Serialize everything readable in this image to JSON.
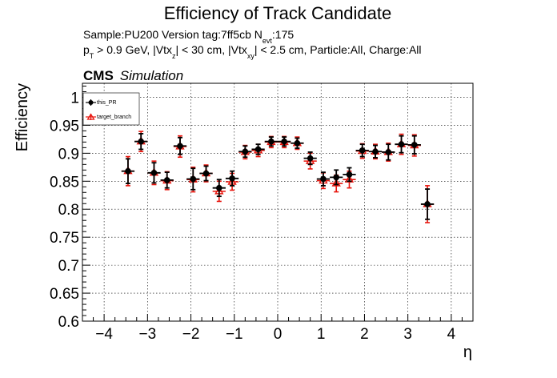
{
  "title": "Efficiency of Track Candidate",
  "info": {
    "sample_prefix": "Sample:PU200   Version tag:7ff5cb  N",
    "sample_sub": "evt",
    "sample_suffix": ":175",
    "cuts_p": "p",
    "cuts_p_sub": "T",
    "cuts_mid1": " > 0.9 GeV, |Vtx",
    "cuts_z_sub": "z",
    "cuts_mid2": "| < 30 cm, |Vtx",
    "cuts_xy_sub": "xy",
    "cuts_end": "| < 2.5 cm, Particle:All, Charge:All"
  },
  "cms_label": "CMS",
  "cms_sublabel": "Simulation",
  "legend": {
    "entries": [
      {
        "label": "this_PR",
        "color": "#000000",
        "marker": "filled-circle"
      },
      {
        "label": "target_branch",
        "color": "#e8140c",
        "marker": "open-triangle"
      }
    ]
  },
  "chart_data": {
    "type": "scatter",
    "title": "Efficiency of Track Candidate",
    "xlabel": "η",
    "ylabel": "Efficiency",
    "xlim": [
      -4.5,
      4.5
    ],
    "ylim": [
      0.6,
      1.025
    ],
    "xticks": [
      -4,
      -3,
      -2,
      -1,
      0,
      1,
      2,
      3,
      4
    ],
    "xtick_labels": [
      "−4",
      "−3",
      "−2",
      "−1",
      "0",
      "1",
      "2",
      "3",
      "4"
    ],
    "yticks": [
      0.6,
      0.65,
      0.7,
      0.75,
      0.8,
      0.85,
      0.9,
      0.95,
      1.0
    ],
    "ytick_labels": [
      "0.6",
      "0.65",
      "0.7",
      "0.75",
      "0.8",
      "0.85",
      "0.9",
      "0.95",
      "1"
    ],
    "grid": true,
    "legend_position": "top-left",
    "bin_half_width": 0.15,
    "series": [
      {
        "name": "this_PR",
        "color": "#000000",
        "x": [
          -3.45,
          -3.15,
          -2.85,
          -2.55,
          -2.25,
          -1.95,
          -1.65,
          -1.35,
          -1.05,
          -0.75,
          -0.45,
          -0.15,
          0.15,
          0.45,
          0.75,
          1.05,
          1.35,
          1.65,
          1.95,
          2.25,
          2.55,
          2.85,
          3.15,
          3.45
        ],
        "y": [
          0.868,
          0.921,
          0.865,
          0.852,
          0.913,
          0.854,
          0.864,
          0.838,
          0.855,
          0.903,
          0.907,
          0.921,
          0.921,
          0.918,
          0.891,
          0.854,
          0.857,
          0.862,
          0.905,
          0.903,
          0.902,
          0.916,
          0.915,
          0.809
        ],
        "yerr": [
          0.022,
          0.014,
          0.018,
          0.014,
          0.015,
          0.019,
          0.013,
          0.015,
          0.013,
          0.01,
          0.009,
          0.008,
          0.008,
          0.009,
          0.011,
          0.012,
          0.013,
          0.012,
          0.011,
          0.011,
          0.014,
          0.015,
          0.016,
          0.027
        ]
      },
      {
        "name": "target_branch",
        "color": "#e8140c",
        "x": [
          -3.45,
          -3.15,
          -2.85,
          -2.55,
          -2.25,
          -1.95,
          -1.65,
          -1.35,
          -1.05,
          -0.75,
          -0.45,
          -0.15,
          0.15,
          0.45,
          0.75,
          1.05,
          1.35,
          1.65,
          1.95,
          2.25,
          2.55,
          2.85,
          3.15,
          3.45
        ],
        "y": [
          0.868,
          0.921,
          0.865,
          0.851,
          0.912,
          0.853,
          0.864,
          0.832,
          0.849,
          0.902,
          0.905,
          0.92,
          0.92,
          0.918,
          0.886,
          0.851,
          0.846,
          0.853,
          0.904,
          0.903,
          0.902,
          0.916,
          0.914,
          0.809
        ],
        "yerr": [
          0.026,
          0.018,
          0.021,
          0.016,
          0.019,
          0.022,
          0.015,
          0.018,
          0.015,
          0.012,
          0.011,
          0.01,
          0.01,
          0.011,
          0.014,
          0.014,
          0.015,
          0.015,
          0.013,
          0.013,
          0.016,
          0.018,
          0.019,
          0.033
        ]
      }
    ]
  }
}
